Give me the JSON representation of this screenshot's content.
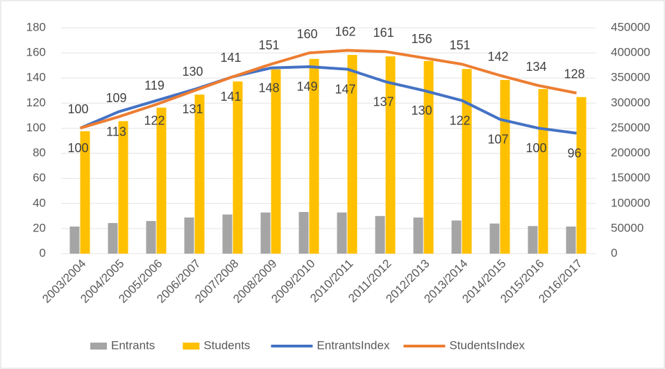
{
  "chart_data": {
    "type": "combo",
    "categories": [
      "2003/2004",
      "2004/2005",
      "2005/2006",
      "2006/2007",
      "2007/2008",
      "2008/2009",
      "2009/2010",
      "2010/2011",
      "2011/2012",
      "2012/2013",
      "2013/2014",
      "2014/2015",
      "2015/2016",
      "2016/2017"
    ],
    "series": [
      {
        "name": "Entrants",
        "kind": "bar",
        "axis": "y2",
        "color": "#a5a5a5",
        "values": [
          54000,
          61000,
          65000,
          72000,
          78000,
          82000,
          83000,
          82000,
          75000,
          72000,
          66000,
          60000,
          55000,
          54000
        ]
      },
      {
        "name": "Students",
        "kind": "bar",
        "axis": "y2",
        "color": "#ffc000",
        "values": [
          244000,
          264000,
          291000,
          317000,
          343000,
          367000,
          388000,
          396000,
          393000,
          384000,
          368000,
          346000,
          328000,
          312000
        ]
      },
      {
        "name": "EntrantsIndex",
        "kind": "line",
        "axis": "y",
        "color": "#4472c4",
        "label_side": "below",
        "values": [
          100,
          113,
          122,
          131,
          141,
          148,
          149,
          147,
          137,
          130,
          122,
          107,
          100,
          96
        ]
      },
      {
        "name": "StudentsIndex",
        "kind": "line",
        "axis": "y",
        "color": "#ed7d31",
        "label_side": "above",
        "values": [
          100,
          109,
          119,
          130,
          141,
          151,
          160,
          162,
          161,
          156,
          151,
          142,
          134,
          128
        ]
      }
    ],
    "ylim": [
      0,
      180
    ],
    "yticks": [
      0,
      20,
      40,
      60,
      80,
      100,
      120,
      140,
      160,
      180
    ],
    "y2lim": [
      0,
      450000
    ],
    "y2ticks": [
      0,
      50000,
      100000,
      150000,
      200000,
      250000,
      300000,
      350000,
      400000,
      450000
    ],
    "grid": true,
    "legend": "bottom"
  }
}
